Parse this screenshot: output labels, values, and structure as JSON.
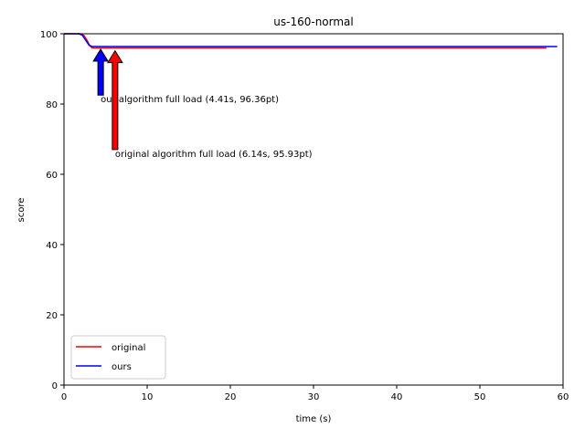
{
  "chart_data": {
    "type": "line",
    "title": "us-160-normal",
    "xlabel": "time (s)",
    "ylabel": "score",
    "xlim": [
      0,
      60
    ],
    "ylim": [
      0,
      100
    ],
    "xticks": [
      0,
      10,
      20,
      30,
      40,
      50,
      60
    ],
    "yticks": [
      0,
      20,
      40,
      60,
      80,
      100
    ],
    "grid": false,
    "legend_position": "lower-left",
    "series": [
      {
        "name": "original",
        "color": "#ff0000",
        "x": [
          0,
          2.0,
          2.4,
          2.8,
          3.1,
          3.4,
          4.0,
          6.14,
          20,
          40,
          58
        ],
        "y": [
          100,
          100,
          99.5,
          98.0,
          96.6,
          95.93,
          95.93,
          95.93,
          95.93,
          95.93,
          95.93
        ]
      },
      {
        "name": "ours",
        "color": "#0000ff",
        "x": [
          0,
          1.8,
          2.2,
          2.6,
          3.0,
          3.4,
          4.41,
          20,
          40,
          59.3
        ],
        "y": [
          100,
          100,
          99.6,
          98.2,
          96.8,
          96.36,
          96.36,
          96.36,
          96.36,
          96.36
        ]
      }
    ],
    "annotations": [
      {
        "text": "our algorithm full load (4.41s, 96.36pt)",
        "point": [
          4.41,
          96.36
        ],
        "text_pos": [
          4.41,
          81.5
        ],
        "color": "#0000ff"
      },
      {
        "text": "original algorithm full load (6.14s, 95.93pt)",
        "point": [
          6.14,
          95.93
        ],
        "text_pos": [
          6.14,
          66.0
        ],
        "color": "#ff0000"
      }
    ]
  }
}
